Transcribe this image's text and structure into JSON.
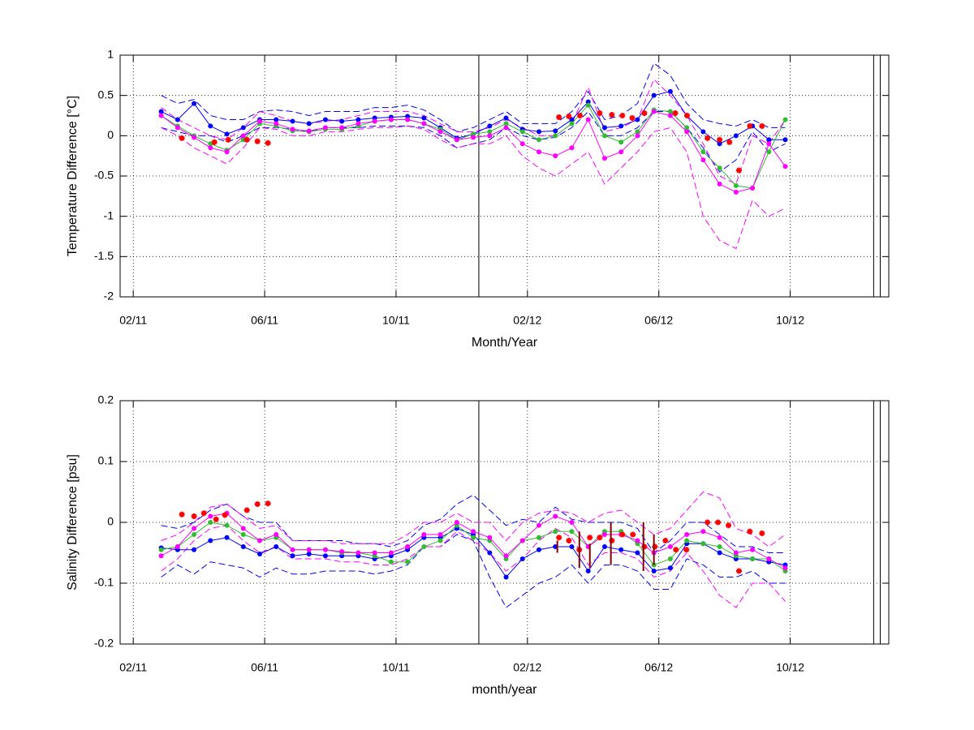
{
  "chart_data": [
    {
      "type": "line",
      "xlabel": "Month/Year",
      "ylabel": "Temperature Difference [°C]",
      "xlim": [
        1.6,
        25
      ],
      "ylim": [
        -2,
        1
      ],
      "xticks": [
        {
          "value": 2,
          "label": "02/11"
        },
        {
          "value": 6,
          "label": "06/11"
        },
        {
          "value": 10,
          "label": "10/11"
        },
        {
          "value": 14,
          "label": "02/12"
        },
        {
          "value": 18,
          "label": "06/12"
        },
        {
          "value": 22,
          "label": "10/12"
        }
      ],
      "yticks": [
        -2,
        -1.5,
        -1,
        -0.5,
        0,
        0.5,
        1
      ],
      "grid": true,
      "vlines": [
        12.52,
        24.54,
        24.74
      ],
      "x": [
        2.85,
        3.35,
        3.85,
        4.35,
        4.85,
        5.35,
        5.85,
        6.35,
        6.85,
        7.35,
        7.85,
        8.35,
        8.85,
        9.35,
        9.85,
        10.35,
        10.85,
        11.35,
        11.85,
        12.35,
        12.85,
        13.35,
        13.85,
        14.35,
        14.85,
        15.35,
        15.85,
        16.35,
        16.85,
        17.35,
        17.85,
        18.35,
        18.85,
        19.35,
        19.85,
        20.35,
        20.85,
        21.35,
        21.85
      ],
      "series": [
        {
          "color": "#0000ff",
          "style": "dashed",
          "values": [
            0.5,
            0.4,
            0.45,
            0.25,
            0.2,
            0.2,
            0.3,
            0.32,
            0.3,
            0.25,
            0.3,
            0.3,
            0.3,
            0.35,
            0.35,
            0.38,
            0.32,
            0.2,
            0.05,
            0.1,
            0.2,
            0.3,
            0.15,
            0.15,
            0.15,
            0.3,
            0.55,
            0.2,
            0.25,
            0.4,
            0.9,
            0.75,
            0.4,
            0.2,
            0.15,
            0.12,
            0.2,
            0.1,
            0.1
          ]
        },
        {
          "color": "#0000ff",
          "style": "dashed",
          "values": [
            0.1,
            0.05,
            0.0,
            0.0,
            -0.08,
            0.0,
            0.1,
            0.1,
            0.08,
            0.05,
            0.1,
            0.1,
            0.1,
            0.12,
            0.12,
            0.12,
            0.1,
            0.0,
            -0.15,
            -0.1,
            -0.05,
            0.1,
            0.0,
            -0.05,
            -0.02,
            0.1,
            0.3,
            0.0,
            0.0,
            0.1,
            0.3,
            0.3,
            0.1,
            -0.15,
            -0.45,
            -0.3,
            0.05,
            -0.2,
            -0.1
          ]
        },
        {
          "color": "#ff00ff",
          "style": "dashed",
          "values": [
            0.35,
            0.2,
            0.1,
            0.0,
            -0.05,
            0.1,
            0.3,
            0.25,
            0.18,
            0.15,
            0.18,
            0.2,
            0.25,
            0.3,
            0.3,
            0.3,
            0.25,
            0.15,
            0.05,
            0.05,
            0.1,
            0.2,
            0.1,
            0.0,
            0.0,
            0.15,
            0.6,
            0.05,
            0.1,
            0.2,
            0.7,
            0.5,
            0.25,
            -0.1,
            -0.5,
            -0.6,
            0.0,
            -0.1,
            0.2
          ]
        },
        {
          "color": "#ff00ff",
          "style": "dashed",
          "values": [
            0.1,
            0.0,
            -0.15,
            -0.25,
            -0.35,
            -0.15,
            0.1,
            0.08,
            0.0,
            0.0,
            0.05,
            0.05,
            0.08,
            0.1,
            0.1,
            0.12,
            0.08,
            -0.05,
            -0.15,
            -0.1,
            -0.1,
            0.0,
            -0.25,
            -0.4,
            -0.5,
            -0.35,
            -0.2,
            -0.6,
            -0.4,
            -0.2,
            0.05,
            0.1,
            -0.2,
            -1.0,
            -1.3,
            -1.4,
            -0.8,
            -1.0,
            -0.9
          ]
        },
        {
          "color": "#0000ff",
          "style": "solid",
          "marker": "dot",
          "values": [
            0.3,
            0.2,
            0.4,
            0.12,
            0.02,
            0.1,
            0.2,
            0.2,
            0.18,
            0.15,
            0.2,
            0.18,
            0.2,
            0.22,
            0.23,
            0.24,
            0.22,
            0.1,
            -0.03,
            0.02,
            0.12,
            0.22,
            0.08,
            0.05,
            0.06,
            0.2,
            0.42,
            0.1,
            0.12,
            0.2,
            0.5,
            0.55,
            0.25,
            0.05,
            -0.1,
            0.0,
            0.12,
            -0.05,
            -0.05
          ]
        },
        {
          "color": "#33bb33",
          "style": "solid",
          "marker": "dot",
          "values": [
            0.25,
            0.12,
            0.0,
            -0.1,
            -0.18,
            -0.05,
            0.15,
            0.12,
            0.06,
            0.05,
            0.08,
            0.08,
            0.12,
            0.18,
            0.2,
            0.2,
            0.15,
            0.08,
            -0.05,
            0.02,
            0.05,
            0.15,
            0.05,
            -0.05,
            0.0,
            0.15,
            0.38,
            0.0,
            -0.08,
            0.05,
            0.32,
            0.3,
            0.1,
            -0.2,
            -0.4,
            -0.62,
            -0.65,
            -0.2,
            0.2
          ]
        },
        {
          "color": "#ff00ff",
          "style": "solid",
          "marker": "dot",
          "values": [
            0.25,
            0.1,
            -0.02,
            -0.15,
            -0.2,
            0.0,
            0.18,
            0.15,
            0.08,
            0.06,
            0.1,
            0.1,
            0.15,
            0.18,
            0.2,
            0.2,
            0.15,
            0.05,
            -0.05,
            -0.02,
            0.0,
            0.1,
            -0.1,
            -0.2,
            -0.25,
            -0.15,
            0.2,
            -0.28,
            -0.2,
            0.0,
            0.3,
            0.25,
            0.05,
            -0.3,
            -0.6,
            -0.7,
            -0.65,
            -0.1,
            -0.38
          ]
        },
        {
          "color": "#ff0000",
          "style": "none",
          "marker": "star",
          "x": [
            3.48,
            4.47,
            4.89,
            5.46,
            5.78,
            6.1,
            14.96,
            15.26,
            15.6,
            16.2,
            16.57,
            16.89,
            17.19,
            17.56,
            18.5,
            18.86,
            19.48,
            19.85,
            20.15,
            20.44,
            20.77,
            21.14
          ],
          "values": [
            -0.03,
            -0.08,
            -0.05,
            -0.05,
            -0.07,
            -0.09,
            0.23,
            0.24,
            0.25,
            0.28,
            0.26,
            0.25,
            0.22,
            0.28,
            0.28,
            0.25,
            -0.03,
            -0.05,
            -0.08,
            -0.43,
            0.12,
            0.12
          ]
        }
      ]
    },
    {
      "type": "line",
      "xlabel": "month/year",
      "ylabel": "Salinity Difference [psu]",
      "xlim": [
        1.6,
        25
      ],
      "ylim": [
        -0.2,
        0.2
      ],
      "xticks": [
        {
          "value": 2,
          "label": "02/11"
        },
        {
          "value": 6,
          "label": "06/11"
        },
        {
          "value": 10,
          "label": "10/11"
        },
        {
          "value": 14,
          "label": "02/12"
        },
        {
          "value": 18,
          "label": "06/12"
        },
        {
          "value": 22,
          "label": "10/12"
        }
      ],
      "yticks": [
        -0.2,
        -0.1,
        0,
        0.1,
        0.2
      ],
      "grid": true,
      "vlines": [
        12.52,
        24.54,
        24.74
      ],
      "x": [
        2.85,
        3.35,
        3.85,
        4.35,
        4.85,
        5.35,
        5.85,
        6.35,
        6.85,
        7.35,
        7.85,
        8.35,
        8.85,
        9.35,
        9.85,
        10.35,
        10.85,
        11.35,
        11.85,
        12.35,
        12.85,
        13.35,
        13.85,
        14.35,
        14.85,
        15.35,
        15.85,
        16.35,
        16.85,
        17.35,
        17.85,
        18.35,
        18.85,
        19.35,
        19.85,
        20.35,
        20.85,
        21.35,
        21.85
      ],
      "series": [
        {
          "color": "#0000ff",
          "style": "dashed",
          "values": [
            -0.005,
            -0.01,
            0.0,
            0.02,
            0.03,
            0.01,
            0.0,
            0.0,
            -0.03,
            -0.03,
            -0.03,
            -0.03,
            -0.035,
            -0.035,
            -0.04,
            -0.03,
            -0.005,
            0.005,
            0.03,
            0.045,
            0.02,
            -0.005,
            0.005,
            0.0,
            0.025,
            0.005,
            0.0,
            0.0,
            0.0,
            -0.01,
            -0.05,
            -0.03,
            0.0,
            0.0,
            -0.02,
            -0.04,
            -0.04,
            -0.05,
            -0.05
          ]
        },
        {
          "color": "#0000ff",
          "style": "dashed",
          "values": [
            -0.09,
            -0.07,
            -0.085,
            -0.065,
            -0.07,
            -0.075,
            -0.09,
            -0.075,
            -0.085,
            -0.085,
            -0.08,
            -0.08,
            -0.08,
            -0.085,
            -0.08,
            -0.07,
            -0.04,
            -0.04,
            -0.02,
            -0.03,
            -0.09,
            -0.14,
            -0.12,
            -0.1,
            -0.09,
            -0.07,
            -0.1,
            -0.07,
            -0.07,
            -0.08,
            -0.11,
            -0.11,
            -0.06,
            -0.07,
            -0.09,
            -0.09,
            -0.08,
            -0.1,
            -0.1
          ]
        },
        {
          "color": "#ff00ff",
          "style": "dashed",
          "values": [
            -0.03,
            -0.02,
            0.0,
            0.025,
            0.03,
            0.01,
            -0.01,
            -0.005,
            -0.03,
            -0.03,
            -0.03,
            -0.035,
            -0.035,
            -0.035,
            -0.035,
            -0.02,
            0.0,
            0.0,
            0.015,
            0.0,
            0.0,
            -0.03,
            0.0,
            0.015,
            0.02,
            0.015,
            0.0,
            0.015,
            0.02,
            0.0,
            -0.02,
            -0.01,
            0.02,
            0.05,
            0.04,
            -0.01,
            -0.02,
            -0.04,
            -0.02
          ]
        },
        {
          "color": "#ff00ff",
          "style": "dashed",
          "values": [
            -0.08,
            -0.06,
            -0.03,
            -0.01,
            -0.005,
            -0.03,
            -0.05,
            -0.04,
            -0.06,
            -0.06,
            -0.06,
            -0.065,
            -0.065,
            -0.07,
            -0.07,
            -0.06,
            -0.04,
            -0.04,
            -0.015,
            -0.03,
            -0.05,
            -0.08,
            -0.06,
            -0.03,
            -0.01,
            -0.025,
            -0.07,
            -0.05,
            -0.05,
            -0.06,
            -0.09,
            -0.08,
            -0.05,
            -0.08,
            -0.12,
            -0.14,
            -0.1,
            -0.1,
            -0.13
          ]
        },
        {
          "color": "#0000ff",
          "style": "solid",
          "marker": "dot",
          "values": [
            -0.042,
            -0.045,
            -0.045,
            -0.03,
            -0.025,
            -0.04,
            -0.052,
            -0.04,
            -0.055,
            -0.052,
            -0.055,
            -0.055,
            -0.055,
            -0.06,
            -0.055,
            -0.045,
            -0.025,
            -0.025,
            -0.01,
            -0.02,
            -0.05,
            -0.09,
            -0.06,
            -0.045,
            -0.04,
            -0.04,
            -0.08,
            -0.04,
            -0.045,
            -0.05,
            -0.08,
            -0.075,
            -0.035,
            -0.035,
            -0.05,
            -0.06,
            -0.06,
            -0.065,
            -0.07
          ]
        },
        {
          "color": "#33bb33",
          "style": "solid",
          "marker": "dot",
          "values": [
            -0.045,
            -0.04,
            -0.02,
            0.0,
            -0.005,
            -0.02,
            -0.03,
            -0.025,
            -0.045,
            -0.045,
            -0.045,
            -0.05,
            -0.05,
            -0.055,
            -0.065,
            -0.065,
            -0.04,
            -0.03,
            -0.005,
            -0.025,
            -0.03,
            -0.06,
            -0.03,
            -0.025,
            -0.015,
            -0.015,
            -0.04,
            -0.015,
            -0.015,
            -0.035,
            -0.07,
            -0.06,
            -0.03,
            -0.035,
            -0.04,
            -0.055,
            -0.06,
            -0.06,
            -0.08
          ]
        },
        {
          "color": "#ff00ff",
          "style": "solid",
          "marker": "dot",
          "values": [
            -0.055,
            -0.04,
            -0.01,
            0.01,
            0.015,
            -0.01,
            -0.03,
            -0.02,
            -0.045,
            -0.045,
            -0.045,
            -0.048,
            -0.05,
            -0.05,
            -0.05,
            -0.04,
            -0.02,
            -0.02,
            0.0,
            -0.015,
            -0.025,
            -0.055,
            -0.03,
            -0.005,
            0.01,
            0.0,
            -0.04,
            -0.02,
            -0.02,
            -0.03,
            -0.05,
            -0.04,
            -0.02,
            -0.015,
            -0.025,
            -0.05,
            -0.045,
            -0.06,
            -0.075
          ]
        },
        {
          "color": "#ff0000",
          "style": "none",
          "marker": "star",
          "x": [
            3.48,
            3.85,
            4.15,
            4.52,
            4.79,
            5.46,
            5.78,
            6.1,
            14.96,
            15.26,
            15.58,
            15.9,
            16.2,
            16.57,
            16.89,
            17.21,
            17.56,
            17.88,
            18.2,
            18.52,
            18.84,
            19.48,
            19.8,
            20.12,
            20.44,
            20.77,
            21.14
          ],
          "values": [
            0.013,
            0.01,
            0.015,
            0.005,
            0.012,
            0.02,
            0.03,
            0.031,
            -0.025,
            -0.03,
            -0.045,
            -0.025,
            -0.025,
            -0.03,
            -0.02,
            -0.02,
            -0.04,
            -0.04,
            -0.03,
            -0.045,
            -0.045,
            0.0,
            0.0,
            -0.005,
            -0.08,
            -0.015,
            -0.018
          ]
        }
      ],
      "errorbars": {
        "color": "#800000",
        "x": [
          14.91,
          15.58,
          15.9,
          16.54,
          17.53,
          17.85
        ],
        "values": [
          -0.04,
          -0.045,
          -0.055,
          -0.035,
          -0.04,
          -0.045
        ],
        "errors": [
          0.01,
          0.03,
          0.02,
          0.035,
          0.04,
          0.025
        ]
      }
    }
  ]
}
